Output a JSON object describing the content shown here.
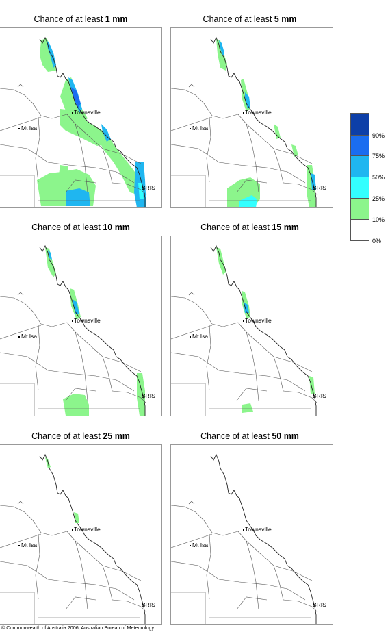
{
  "panels": [
    {
      "prefix": "Chance of at least ",
      "amount": "1 mm"
    },
    {
      "prefix": "Chance of at least ",
      "amount": "5 mm"
    },
    {
      "prefix": "Chance of at least ",
      "amount": "10 mm"
    },
    {
      "prefix": "Chance of at least ",
      "amount": "15 mm"
    },
    {
      "prefix": "Chance of at least ",
      "amount": "25 mm"
    },
    {
      "prefix": "Chance of at least ",
      "amount": "50 mm"
    }
  ],
  "places": {
    "townsville": "Townsville",
    "mt_isa": "Mt Isa",
    "bris": "BRIS"
  },
  "legend": {
    "labels": [
      "90%",
      "75%",
      "50%",
      "25%",
      "10%",
      "0%"
    ],
    "colors": [
      "#0d3fa8",
      "#1a6df0",
      "#1fb6f0",
      "#33ffff",
      "#8cf58c",
      "#ffffff"
    ]
  },
  "copyright": "© Commonwealth of Australia 2006, Australian Bureau of Meteorology"
}
